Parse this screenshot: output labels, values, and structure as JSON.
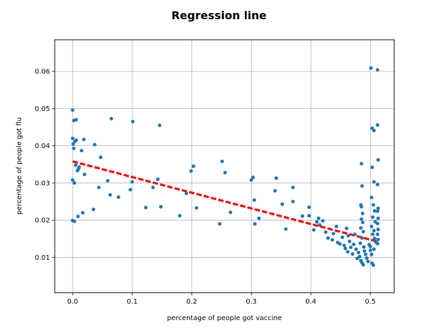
{
  "chart_data": {
    "type": "scatter",
    "title": "Regression line",
    "xlabel": "percentage of people got vaccine",
    "ylabel": "percentage of people got flu",
    "xlim": [
      -0.03,
      0.54
    ],
    "ylim": [
      0.0005,
      0.0685
    ],
    "xticks": [
      0.0,
      0.1,
      0.2,
      0.3,
      0.4,
      0.5
    ],
    "xtick_labels": [
      "0.0",
      "0.1",
      "0.2",
      "0.3",
      "0.4",
      "0.5"
    ],
    "yticks": [
      0.01,
      0.02,
      0.03,
      0.04,
      0.05,
      0.06
    ],
    "ytick_labels": [
      "0.01",
      "0.02",
      "0.03",
      "0.04",
      "0.05",
      "0.06"
    ],
    "grid": true,
    "colors": {
      "points": "#1f77b4",
      "regression": "#ff0000",
      "grid": "#b0b0b0"
    },
    "regression_line": {
      "x": [
        0.0,
        0.513
      ],
      "y": [
        0.0358,
        0.0142
      ],
      "style": "dashed"
    },
    "points": [
      [
        0.0,
        0.0496
      ],
      [
        0.002,
        0.0468
      ],
      [
        0.006,
        0.047
      ],
      [
        0.0,
        0.042
      ],
      [
        0.004,
        0.0412
      ],
      [
        0.001,
        0.0405
      ],
      [
        0.006,
        0.0415
      ],
      [
        0.002,
        0.0393
      ],
      [
        0.019,
        0.0417
      ],
      [
        0.015,
        0.0387
      ],
      [
        0.037,
        0.0403
      ],
      [
        0.065,
        0.0473
      ],
      [
        0.101,
        0.0465
      ],
      [
        0.146,
        0.0455
      ],
      [
        0.047,
        0.0369
      ],
      [
        0.011,
        0.0343
      ],
      [
        0.01,
        0.0338
      ],
      [
        0.008,
        0.0333
      ],
      [
        0.005,
        0.0348
      ],
      [
        0.02,
        0.0323
      ],
      [
        0.0,
        0.0308
      ],
      [
        0.003,
        0.03
      ],
      [
        0.044,
        0.0288
      ],
      [
        0.059,
        0.0306
      ],
      [
        0.063,
        0.0268
      ],
      [
        0.077,
        0.0262
      ],
      [
        0.097,
        0.0282
      ],
      [
        0.1,
        0.0303
      ],
      [
        0.135,
        0.0288
      ],
      [
        0.143,
        0.031
      ],
      [
        0.199,
        0.0332
      ],
      [
        0.203,
        0.0345
      ],
      [
        0.191,
        0.0272
      ],
      [
        0.251,
        0.0358
      ],
      [
        0.256,
        0.0328
      ],
      [
        0.035,
        0.0229
      ],
      [
        0.017,
        0.022
      ],
      [
        0.009,
        0.021
      ],
      [
        0.0,
        0.0199
      ],
      [
        0.003,
        0.0197
      ],
      [
        0.123,
        0.0234
      ],
      [
        0.148,
        0.0236
      ],
      [
        0.18,
        0.0212
      ],
      [
        0.208,
        0.0233
      ],
      [
        0.247,
        0.019
      ],
      [
        0.265,
        0.0221
      ],
      [
        0.3,
        0.0308
      ],
      [
        0.303,
        0.0315
      ],
      [
        0.305,
        0.0254
      ],
      [
        0.313,
        0.0205
      ],
      [
        0.306,
        0.019
      ],
      [
        0.342,
        0.0313
      ],
      [
        0.34,
        0.0279
      ],
      [
        0.352,
        0.0243
      ],
      [
        0.358,
        0.0176
      ],
      [
        0.37,
        0.0288
      ],
      [
        0.37,
        0.025
      ],
      [
        0.386,
        0.0211
      ],
      [
        0.397,
        0.0235
      ],
      [
        0.397,
        0.0212
      ],
      [
        0.405,
        0.0174
      ],
      [
        0.41,
        0.0195
      ],
      [
        0.413,
        0.0205
      ],
      [
        0.42,
        0.0198
      ],
      [
        0.415,
        0.0187
      ],
      [
        0.425,
        0.0168
      ],
      [
        0.429,
        0.0152
      ],
      [
        0.436,
        0.0147
      ],
      [
        0.443,
        0.0183
      ],
      [
        0.438,
        0.0164
      ],
      [
        0.445,
        0.014
      ],
      [
        0.449,
        0.0136
      ],
      [
        0.453,
        0.0154
      ],
      [
        0.456,
        0.0132
      ],
      [
        0.458,
        0.0124
      ],
      [
        0.46,
        0.0178
      ],
      [
        0.463,
        0.0158
      ],
      [
        0.462,
        0.0115
      ],
      [
        0.465,
        0.0143
      ],
      [
        0.467,
        0.0127
      ],
      [
        0.47,
        0.0109
      ],
      [
        0.472,
        0.0135
      ],
      [
        0.474,
        0.0162
      ],
      [
        0.476,
        0.0122
      ],
      [
        0.478,
        0.0097
      ],
      [
        0.48,
        0.0113
      ],
      [
        0.482,
        0.0102
      ],
      [
        0.484,
        0.0091
      ],
      [
        0.486,
        0.0085
      ],
      [
        0.488,
        0.008
      ],
      [
        0.485,
        0.0352
      ],
      [
        0.486,
        0.0292
      ],
      [
        0.484,
        0.0241
      ],
      [
        0.485,
        0.0236
      ],
      [
        0.487,
        0.0218
      ],
      [
        0.485,
        0.0203
      ],
      [
        0.487,
        0.0194
      ],
      [
        0.484,
        0.0179
      ],
      [
        0.488,
        0.0169
      ],
      [
        0.486,
        0.0152
      ],
      [
        0.483,
        0.0138
      ],
      [
        0.489,
        0.0128
      ],
      [
        0.49,
        0.0117
      ],
      [
        0.492,
        0.0108
      ],
      [
        0.494,
        0.0098
      ],
      [
        0.496,
        0.0089
      ],
      [
        0.498,
        0.0134
      ],
      [
        0.5,
        0.0119
      ],
      [
        0.502,
        0.0108
      ],
      [
        0.503,
        0.0084
      ],
      [
        0.505,
        0.0079
      ],
      [
        0.501,
        0.0609
      ],
      [
        0.503,
        0.0447
      ],
      [
        0.506,
        0.0441
      ],
      [
        0.503,
        0.0342
      ],
      [
        0.506,
        0.0303
      ],
      [
        0.502,
        0.0261
      ],
      [
        0.505,
        0.0241
      ],
      [
        0.507,
        0.0225
      ],
      [
        0.504,
        0.0208
      ],
      [
        0.508,
        0.0196
      ],
      [
        0.502,
        0.0183
      ],
      [
        0.506,
        0.0172
      ],
      [
        0.504,
        0.0162
      ],
      [
        0.507,
        0.0151
      ],
      [
        0.509,
        0.0141
      ],
      [
        0.5,
        0.0129
      ],
      [
        0.506,
        0.0122
      ],
      [
        0.512,
        0.0604
      ],
      [
        0.512,
        0.0456
      ],
      [
        0.513,
        0.0362
      ],
      [
        0.512,
        0.0296
      ],
      [
        0.513,
        0.0232
      ],
      [
        0.512,
        0.0224
      ],
      [
        0.513,
        0.0205
      ],
      [
        0.512,
        0.0191
      ],
      [
        0.513,
        0.0175
      ],
      [
        0.512,
        0.0162
      ],
      [
        0.513,
        0.0148
      ],
      [
        0.512,
        0.0137
      ]
    ]
  }
}
